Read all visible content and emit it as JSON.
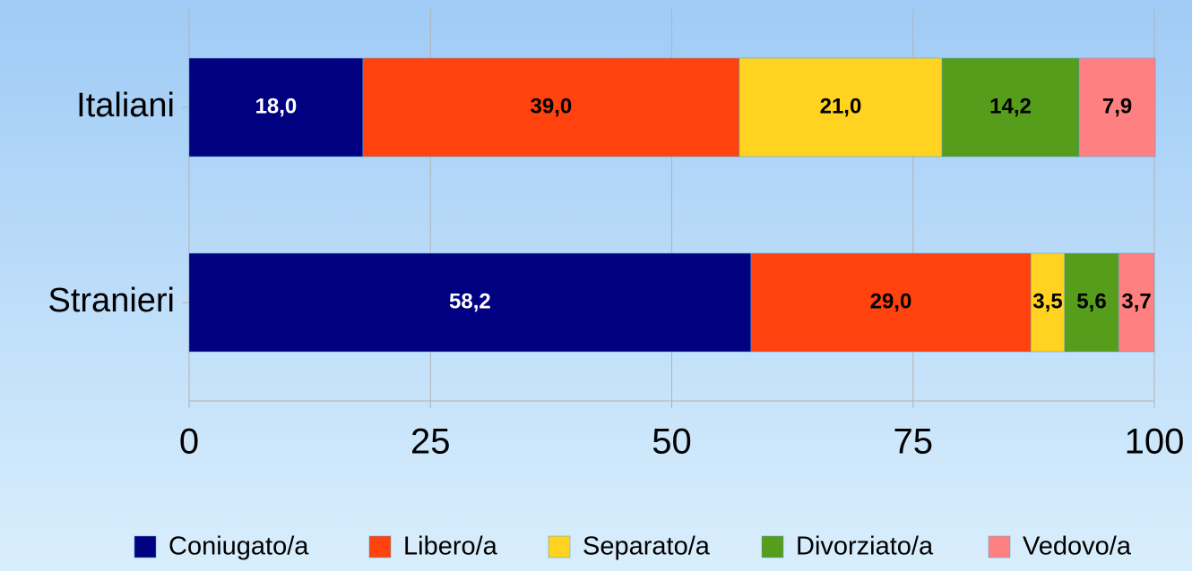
{
  "chart_data": {
    "type": "stacked-bar-horizontal",
    "categories": [
      "Italiani",
      "Stranieri"
    ],
    "series": [
      {
        "name": "Coniugato/a",
        "color": "#000080",
        "label_color": "#ffffff",
        "values": [
          18.0,
          58.2
        ],
        "value_labels": [
          "18,0",
          "58,2"
        ]
      },
      {
        "name": "Libero/a",
        "color": "#ff420e",
        "label_color": "#000000",
        "values": [
          39.0,
          29.0
        ],
        "value_labels": [
          "39,0",
          "29,0"
        ]
      },
      {
        "name": "Separato/a",
        "color": "#ffd320",
        "label_color": "#000000",
        "values": [
          21.0,
          3.5
        ],
        "value_labels": [
          "21,0",
          "3,5"
        ]
      },
      {
        "name": "Divorziato/a",
        "color": "#579d1c",
        "label_color": "#000000",
        "values": [
          14.2,
          5.6
        ],
        "value_labels": [
          "14,2",
          "5,6"
        ]
      },
      {
        "name": "Vedovo/a",
        "color": "#ff8080",
        "label_color": "#000000",
        "values": [
          7.9,
          3.7
        ],
        "value_labels": [
          "7,9",
          "3,7"
        ]
      }
    ],
    "xlim": [
      0,
      100
    ],
    "xticks": [
      0,
      25,
      50,
      75,
      100
    ],
    "grid": true,
    "legend": "bottom"
  }
}
